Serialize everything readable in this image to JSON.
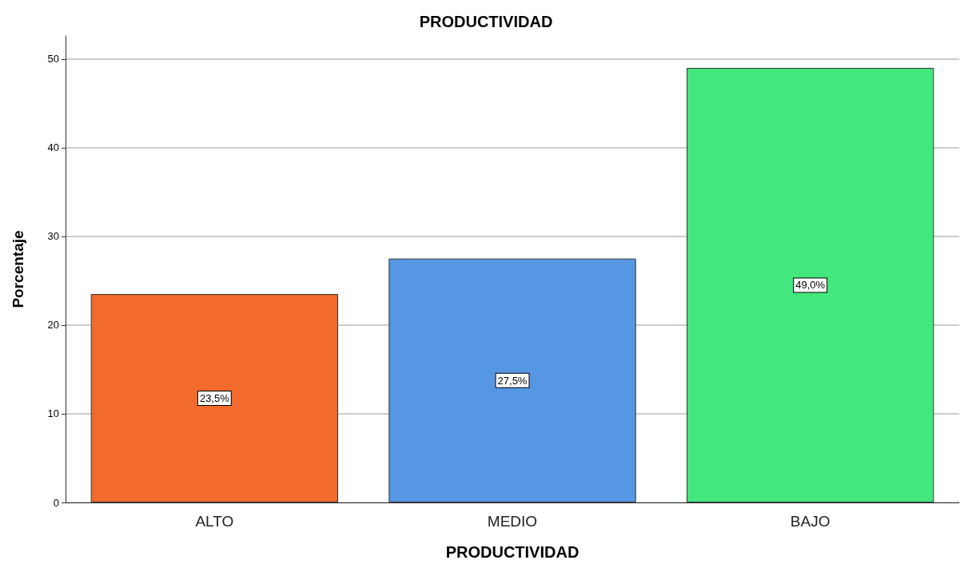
{
  "chart_data": {
    "type": "bar",
    "title": "PRODUCTIVIDAD",
    "xlabel": "PRODUCTIVIDAD",
    "ylabel": "Porcentaje",
    "categories": [
      "ALTO",
      "MEDIO",
      "BAJO"
    ],
    "values": [
      23.5,
      27.5,
      49.0
    ],
    "colors": [
      "#f26a2c",
      "#5697e4",
      "#42e87e"
    ],
    "value_labels": [
      "23,5%",
      "27,5%",
      "49,0%"
    ],
    "ylim": [
      0,
      52.6
    ],
    "yticks": [
      0,
      10,
      20,
      30,
      40,
      50
    ],
    "grid": "y"
  }
}
